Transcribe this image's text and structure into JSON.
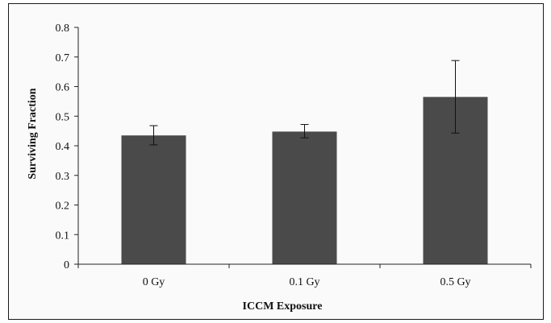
{
  "chart_data": {
    "type": "bar",
    "categories": [
      "0 Gy",
      "0.1 Gy",
      "0.5 Gy"
    ],
    "values": [
      0.435,
      0.448,
      0.565
    ],
    "error": {
      "lower": [
        0.403,
        0.427,
        0.443
      ],
      "upper": [
        0.468,
        0.472,
        0.688
      ]
    },
    "xlabel": "ICCM Exposure",
    "ylabel": "Surviving Fraction",
    "ylim": [
      0,
      0.8
    ],
    "yticks": [
      "0",
      "0.1",
      "0.2",
      "0.3",
      "0.4",
      "0.5",
      "0.6",
      "0.7",
      "0.8"
    ],
    "grid": false,
    "colors": {
      "bar": "#4a4a4a",
      "axis": "#222222"
    }
  }
}
